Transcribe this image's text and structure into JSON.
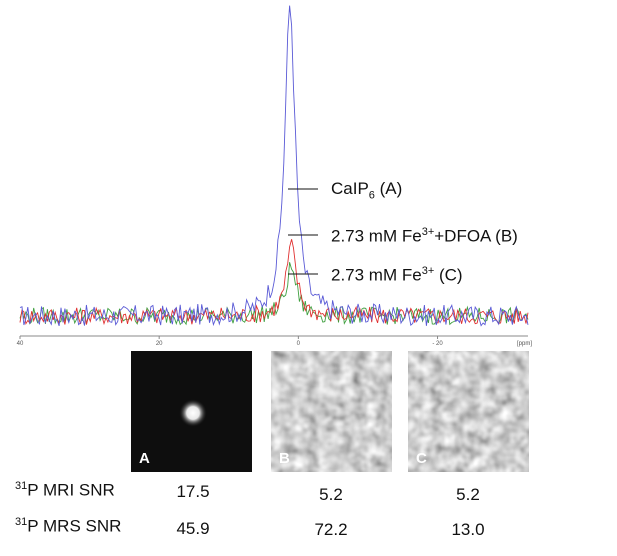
{
  "chart_data": {
    "type": "line",
    "x_unit": "[ppm]",
    "x_ticks": [
      "40",
      "20",
      "0",
      "- 20"
    ],
    "x_range": [
      40,
      -33
    ],
    "series": [
      {
        "name": "CaIP6 (A)",
        "color": "#5a5ad6",
        "peak_ppm": 1.2,
        "peak_height": 1.6,
        "noise": 0.055
      },
      {
        "name": "2.73 mM Fe3+ + DFOA (B)",
        "color": "#e03030",
        "peak_ppm": 1.0,
        "peak_height": 0.36,
        "noise": 0.045
      },
      {
        "name": "2.73 mM Fe3+ (C)",
        "color": "#3f9f3f",
        "peak_ppm": 1.0,
        "peak_height": 0.25,
        "noise": 0.045
      }
    ],
    "annotations": [
      {
        "label_pre": "CaIP",
        "sub": "6",
        "label_post": " (A)"
      },
      {
        "label_pre": "2.73 mM Fe",
        "sup": "3+",
        "label_post": "+DFOA (B)"
      },
      {
        "label_pre": "2.73 mM Fe",
        "sup": "3+",
        "label_post": " (C)"
      }
    ]
  },
  "images": [
    {
      "label": "A",
      "kind": "bright-spot"
    },
    {
      "label": "B",
      "kind": "noise"
    },
    {
      "label": "C",
      "kind": "noise"
    }
  ],
  "table": {
    "rows": [
      {
        "nucleus_sup": "31",
        "label": "P MRI SNR",
        "values": [
          "17.5",
          "5.2",
          "5.2"
        ]
      },
      {
        "nucleus_sup": "31",
        "label": "P MRS SNR",
        "values": [
          "45.9",
          "72.2",
          "13.0"
        ]
      }
    ]
  }
}
